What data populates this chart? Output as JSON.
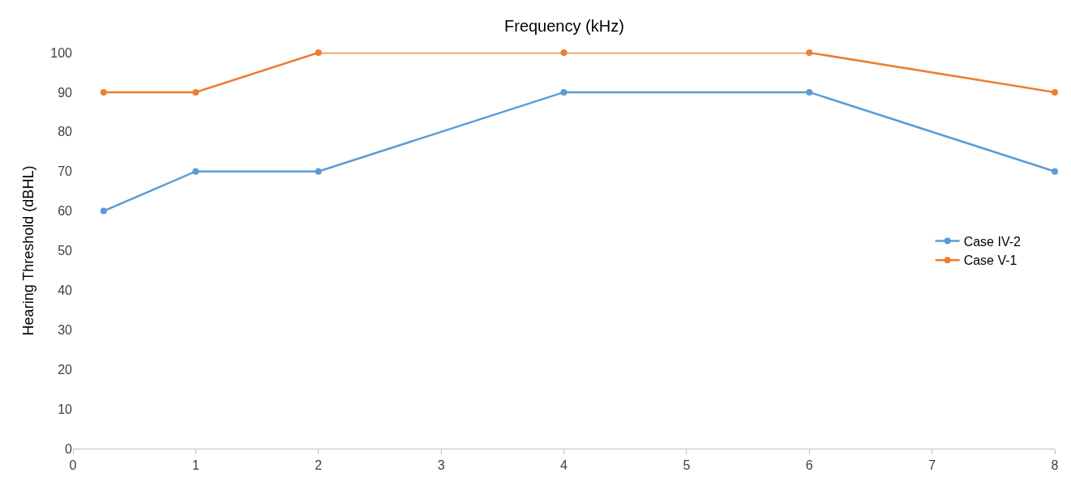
{
  "chart_data": {
    "type": "line",
    "xlabel": "Frequency (kHz)",
    "ylabel": "Hearing Threshold (dBHL)",
    "x": [
      0.25,
      1,
      2,
      4,
      6,
      8
    ],
    "series": [
      {
        "name": "Case IV-2",
        "color": "#5b9bd5",
        "values": [
          60,
          70,
          70,
          90,
          90,
          70
        ]
      },
      {
        "name": "Case V-1",
        "color": "#ed7d31",
        "values": [
          90,
          90,
          100,
          100,
          100,
          90
        ]
      }
    ],
    "xlim": [
      0,
      8
    ],
    "xticks": [
      0,
      1,
      2,
      3,
      4,
      5,
      6,
      7,
      8
    ],
    "ylim": [
      0,
      100
    ],
    "yticks": [
      0,
      10,
      20,
      30,
      40,
      50,
      60,
      70,
      80,
      90,
      100
    ],
    "grid": false,
    "legend": "right",
    "marker": "circle",
    "line_style": "solid"
  }
}
